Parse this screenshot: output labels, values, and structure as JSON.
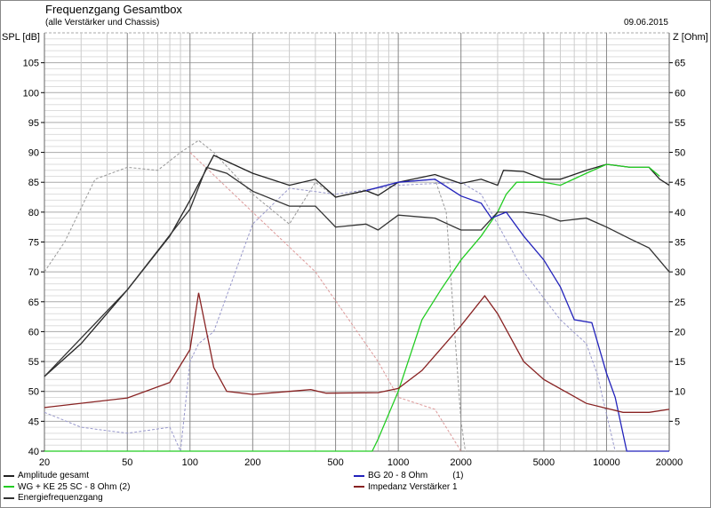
{
  "header": {
    "title": "Frequenzgang Gesamtbox",
    "subtitle": "(alle Verstärker und Chassis)",
    "date": "09.06.2015"
  },
  "chart_data": {
    "type": "line",
    "title": "Frequenzgang Gesamtbox",
    "ylabel": "SPL [dB]",
    "y2label": "Z [Ohm]",
    "xlabel": "",
    "xscale": "log",
    "xlim": [
      20,
      20000
    ],
    "ylim": [
      40,
      110
    ],
    "y2lim": [
      0,
      70
    ],
    "xticks": [
      20,
      50,
      100,
      200,
      500,
      1000,
      2000,
      5000,
      10000,
      20000
    ],
    "yticks": [
      40,
      45,
      50,
      55,
      60,
      65,
      70,
      75,
      80,
      85,
      90,
      95,
      100,
      105
    ],
    "y2ticks": [
      5,
      10,
      15,
      20,
      25,
      30,
      35,
      40,
      45,
      50,
      55,
      60,
      65
    ],
    "grid": true,
    "legend_position": "bottom",
    "series": [
      {
        "name": "Amplitude gesamt",
        "color": "#222222",
        "axis": "left",
        "legend_col": 0,
        "points": [
          [
            20,
            52.5
          ],
          [
            30,
            58
          ],
          [
            50,
            67
          ],
          [
            80,
            76
          ],
          [
            100,
            82
          ],
          [
            130,
            89.5
          ],
          [
            200,
            86.5
          ],
          [
            300,
            84.5
          ],
          [
            400,
            85.5
          ],
          [
            500,
            82.5
          ],
          [
            700,
            83.6
          ],
          [
            800,
            82.8
          ],
          [
            1000,
            85
          ],
          [
            1500,
            86.3
          ],
          [
            2000,
            84.8
          ],
          [
            2500,
            85.5
          ],
          [
            3000,
            84.5
          ],
          [
            3200,
            87
          ],
          [
            4000,
            86.8
          ],
          [
            5000,
            85.5
          ],
          [
            6000,
            85.5
          ],
          [
            8000,
            87
          ],
          [
            10000,
            88
          ],
          [
            13000,
            87.5
          ],
          [
            16000,
            87.5
          ],
          [
            18000,
            85.5
          ],
          [
            20000,
            84.5
          ]
        ]
      },
      {
        "name": "WG + KE 25 SC - 8 Ohm (2)",
        "color": "#22cc22",
        "axis": "left",
        "legend_col": 0,
        "points": [
          [
            20,
            40
          ],
          [
            750,
            40
          ],
          [
            800,
            42
          ],
          [
            1000,
            50
          ],
          [
            1300,
            62
          ],
          [
            1600,
            67
          ],
          [
            2000,
            72
          ],
          [
            2500,
            76
          ],
          [
            3000,
            80
          ],
          [
            3300,
            83
          ],
          [
            3700,
            85
          ],
          [
            5000,
            85
          ],
          [
            6000,
            84.5
          ],
          [
            8000,
            86.5
          ],
          [
            10000,
            88
          ],
          [
            13000,
            87.5
          ],
          [
            16000,
            87.5
          ],
          [
            18000,
            86
          ]
        ]
      },
      {
        "name": "Energiefrequenzgang",
        "color": "#333333",
        "axis": "left",
        "legend_col": 0,
        "points": [
          [
            20,
            52.5
          ],
          [
            50,
            67
          ],
          [
            100,
            80.5
          ],
          [
            120,
            87.5
          ],
          [
            150,
            86.5
          ],
          [
            200,
            83.5
          ],
          [
            300,
            81
          ],
          [
            400,
            81
          ],
          [
            500,
            77.5
          ],
          [
            700,
            78
          ],
          [
            800,
            77
          ],
          [
            1000,
            79.5
          ],
          [
            1500,
            79
          ],
          [
            2000,
            77
          ],
          [
            2500,
            77
          ],
          [
            3000,
            80
          ],
          [
            4000,
            80
          ],
          [
            5000,
            79.5
          ],
          [
            6000,
            78.5
          ],
          [
            8000,
            79
          ],
          [
            10000,
            77.5
          ],
          [
            13000,
            75.5
          ],
          [
            16000,
            74
          ],
          [
            20000,
            70
          ]
        ]
      },
      {
        "name": "BG 20 - 8 Ohm",
        "tag": "(1)",
        "color": "#2222bb",
        "axis": "left",
        "legend_col": 1,
        "points": [
          [
            700,
            83.6
          ],
          [
            1000,
            85
          ],
          [
            1500,
            85.5
          ],
          [
            2000,
            82.7
          ],
          [
            2500,
            81.5
          ],
          [
            2800,
            79
          ],
          [
            3300,
            80
          ],
          [
            4000,
            76
          ],
          [
            5000,
            72
          ],
          [
            6000,
            67.5
          ],
          [
            7000,
            62
          ],
          [
            8500,
            61.5
          ],
          [
            10000,
            53
          ],
          [
            11000,
            49
          ],
          [
            12500,
            40
          ],
          [
            20000,
            40
          ]
        ]
      },
      {
        "name": "Impedanz Verstärker 1",
        "color": "#882222",
        "axis": "right",
        "legend_col": 1,
        "points": [
          [
            20,
            7.3
          ],
          [
            50,
            8.9
          ],
          [
            80,
            11.5
          ],
          [
            100,
            17
          ],
          [
            110,
            26.5
          ],
          [
            130,
            14
          ],
          [
            150,
            10
          ],
          [
            200,
            9.5
          ],
          [
            300,
            10
          ],
          [
            380,
            10.3
          ],
          [
            450,
            9.7
          ],
          [
            800,
            9.8
          ],
          [
            1000,
            10.5
          ],
          [
            1300,
            13.5
          ],
          [
            2000,
            21
          ],
          [
            2600,
            26
          ],
          [
            3000,
            23
          ],
          [
            4000,
            15
          ],
          [
            5000,
            12
          ],
          [
            8000,
            8
          ],
          [
            12000,
            6.5
          ],
          [
            16000,
            6.5
          ],
          [
            20000,
            7
          ]
        ]
      }
    ],
    "reference_curves": [
      {
        "color": "#999999",
        "dashed": true,
        "axis": "left",
        "points": [
          [
            20,
            70
          ],
          [
            25,
            75
          ],
          [
            35,
            85.5
          ],
          [
            50,
            87.5
          ],
          [
            70,
            87
          ],
          [
            90,
            90
          ],
          [
            110,
            92
          ],
          [
            130,
            90
          ],
          [
            200,
            83
          ],
          [
            300,
            78
          ],
          [
            400,
            85
          ],
          [
            500,
            82.5
          ],
          [
            700,
            83.5
          ],
          [
            1000,
            85
          ],
          [
            1500,
            85.5
          ],
          [
            1700,
            80
          ],
          [
            2000,
            45
          ],
          [
            2100,
            40
          ]
        ]
      },
      {
        "color": "#9999cc",
        "dashed": true,
        "axis": "left",
        "points": [
          [
            20,
            46.5
          ],
          [
            30,
            44
          ],
          [
            50,
            43
          ],
          [
            80,
            44
          ],
          [
            90,
            40
          ],
          [
            100,
            55
          ],
          [
            110,
            58
          ],
          [
            130,
            60
          ],
          [
            200,
            78
          ],
          [
            300,
            84
          ],
          [
            500,
            83
          ],
          [
            1000,
            84.5
          ],
          [
            2000,
            85
          ],
          [
            2500,
            83
          ],
          [
            3000,
            78
          ],
          [
            4000,
            70
          ],
          [
            6000,
            62
          ],
          [
            8000,
            58
          ],
          [
            9000,
            53
          ],
          [
            11000,
            40
          ]
        ]
      },
      {
        "color": "#dd9999",
        "dashed": true,
        "axis": "left",
        "points": [
          [
            100,
            90
          ],
          [
            200,
            80
          ],
          [
            400,
            70
          ],
          [
            800,
            55
          ],
          [
            1000,
            49
          ],
          [
            1500,
            47
          ],
          [
            2000,
            40
          ]
        ]
      }
    ]
  }
}
